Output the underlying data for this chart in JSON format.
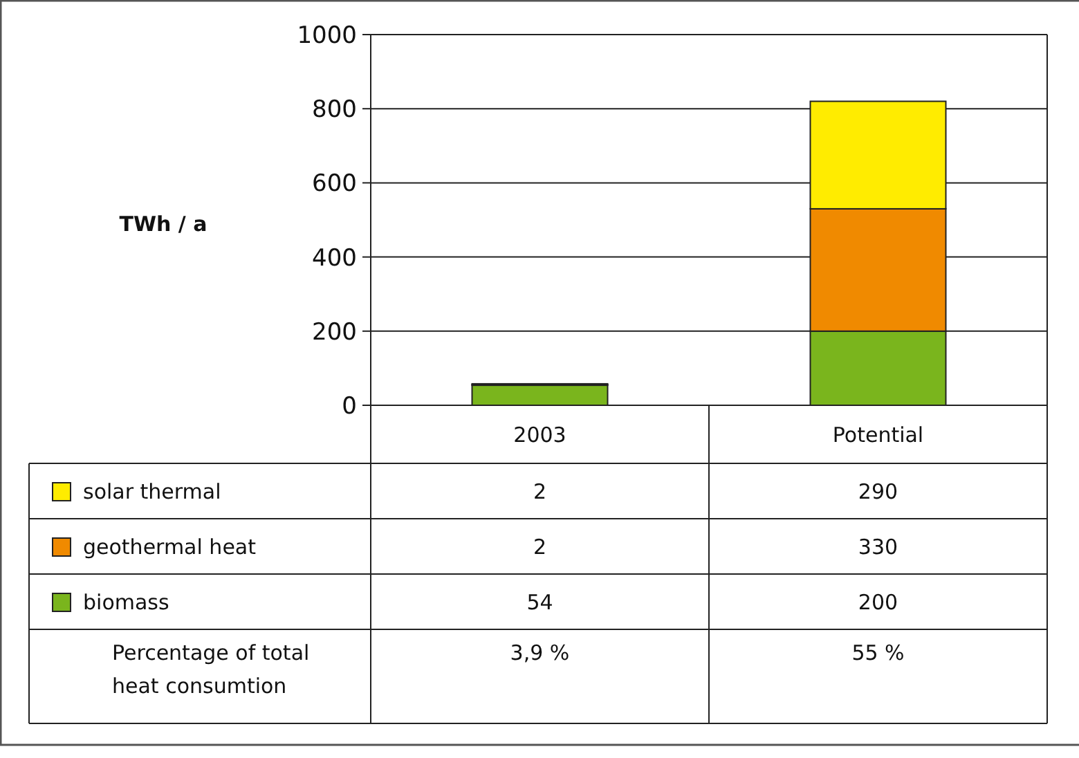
{
  "chart_data": {
    "type": "bar",
    "stacked": true,
    "ylabel": "TWh / a",
    "categories": [
      "2003",
      "Potential"
    ],
    "series": [
      {
        "name": "biomass",
        "color": "#7ab51d",
        "values": [
          54,
          200
        ]
      },
      {
        "name": "geothermal heat",
        "color": "#f08a00",
        "values": [
          2,
          330
        ]
      },
      {
        "name": "solar thermal",
        "color": "#ffec00",
        "values": [
          2,
          290
        ]
      }
    ],
    "ylim": [
      0,
      1000
    ],
    "yticks": [
      0,
      200,
      400,
      600,
      800,
      1000
    ],
    "grid": "y",
    "legend": "bottom",
    "data_labels": true,
    "annotations": [
      "Percentage of total\nheat consumtion",
      "3,9 %",
      "55 %"
    ]
  }
}
